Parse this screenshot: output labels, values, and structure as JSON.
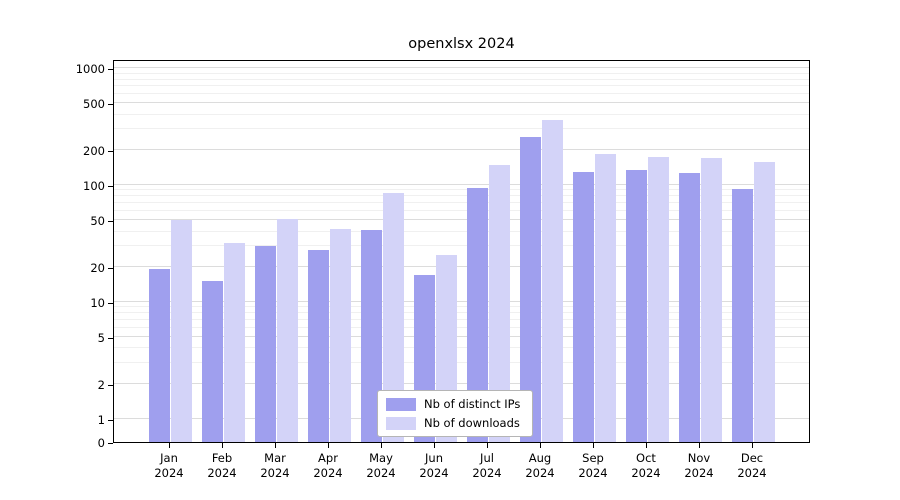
{
  "chart_data": {
    "type": "bar",
    "title": "openxlsx 2024",
    "categories": [
      "Jan",
      "Feb",
      "Mar",
      "Apr",
      "May",
      "Jun",
      "Jul",
      "Aug",
      "Sep",
      "Oct",
      "Nov",
      "Dec"
    ],
    "year_label": "2024",
    "series": [
      {
        "name": "Nb of distinct IPs",
        "color": "#9f9fee",
        "values": [
          19,
          15,
          30,
          28,
          41,
          17,
          95,
          260,
          130,
          135,
          128,
          92
        ]
      },
      {
        "name": "Nb of downloads",
        "color": "#d3d3f8",
        "values": [
          50,
          32,
          51,
          42,
          85,
          25,
          150,
          360,
          185,
          175,
          172,
          158
        ]
      }
    ],
    "yticks": [
      0,
      1,
      2,
      5,
      10,
      20,
      50,
      100,
      200,
      500,
      1000
    ],
    "scale": "log-like",
    "ylim": [
      0,
      1200
    ],
    "grid": true,
    "legend_position": "lower center inside plot"
  }
}
